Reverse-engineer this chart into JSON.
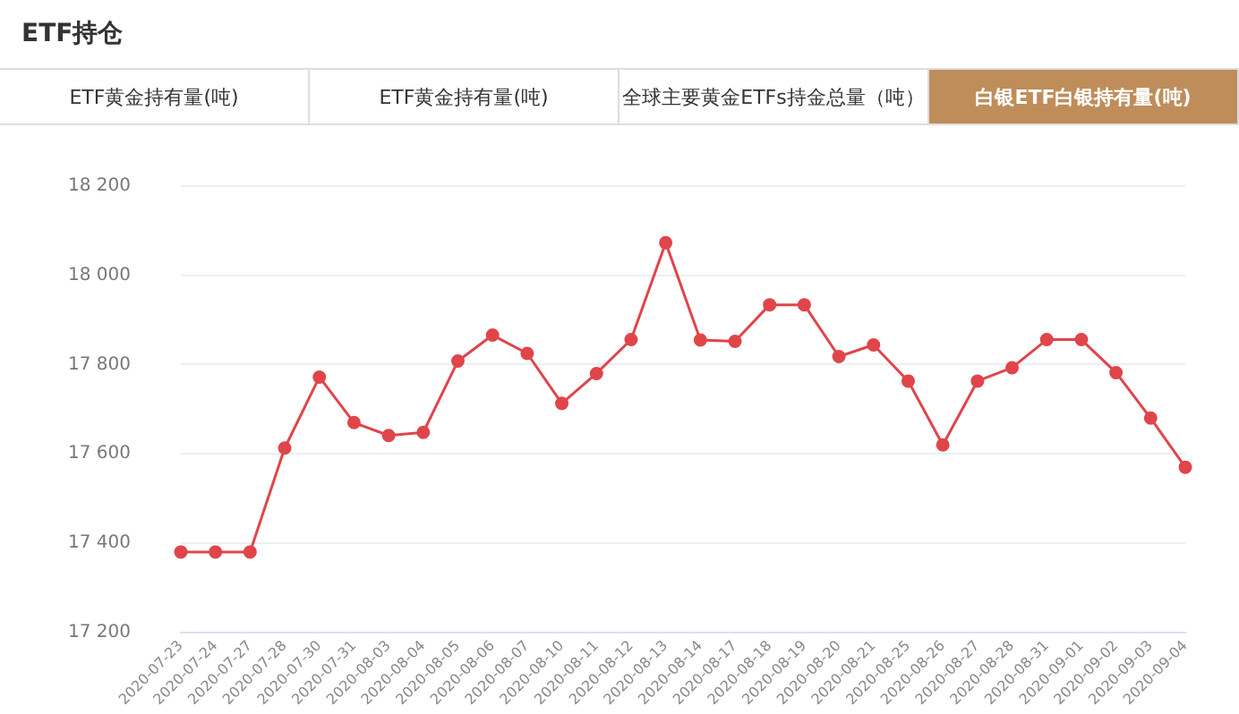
{
  "chart_data": {
    "type": "line",
    "title": "ETF持仓",
    "subtitle": "白银ETF白银持有量(吨)",
    "annotations": [
      "ETF黄金持有量(吨)",
      "ETF黄金持有量(吨)",
      "全球主要黄金ETFs持金总量（吨）"
    ],
    "categories": [
      "2020-07-23",
      "2020-07-24",
      "2020-07-27",
      "2020-07-28",
      "2020-07-30",
      "2020-07-31",
      "2020-08-03",
      "2020-08-04",
      "2020-08-05",
      "2020-08-06",
      "2020-08-07",
      "2020-08-10",
      "2020-08-11",
      "2020-08-12",
      "2020-08-13",
      "2020-08-14",
      "2020-08-17",
      "2020-08-18",
      "2020-08-19",
      "2020-08-20",
      "2020-08-21",
      "2020-08-25",
      "2020-08-26",
      "2020-08-27",
      "2020-08-28",
      "2020-08-31",
      "2020-09-01",
      "2020-09-02",
      "2020-09-03",
      "2020-09-04"
    ],
    "series": [
      {
        "color": "#e0454a",
        "values": [
          17380,
          17380,
          17380,
          17613,
          17772,
          17670,
          17641,
          17648,
          17808,
          17866,
          17825,
          17713,
          17780,
          17856,
          18073,
          17855,
          17852,
          17934,
          17934,
          17818,
          17844,
          17763,
          17620,
          17763,
          17793,
          17856,
          17856,
          17782,
          17680,
          17570
        ]
      }
    ],
    "ylim": [
      17200,
      18200
    ],
    "yticks": [
      {
        "value": 17200,
        "label": "17 200"
      },
      {
        "value": 17400,
        "label": "17 400"
      },
      {
        "value": 17600,
        "label": "17 600"
      },
      {
        "value": 17800,
        "label": "17 800"
      },
      {
        "value": 18000,
        "label": "18 000"
      },
      {
        "value": 18200,
        "label": "18 200"
      }
    ],
    "grid": "y",
    "marker": "circle",
    "legend": false
  }
}
